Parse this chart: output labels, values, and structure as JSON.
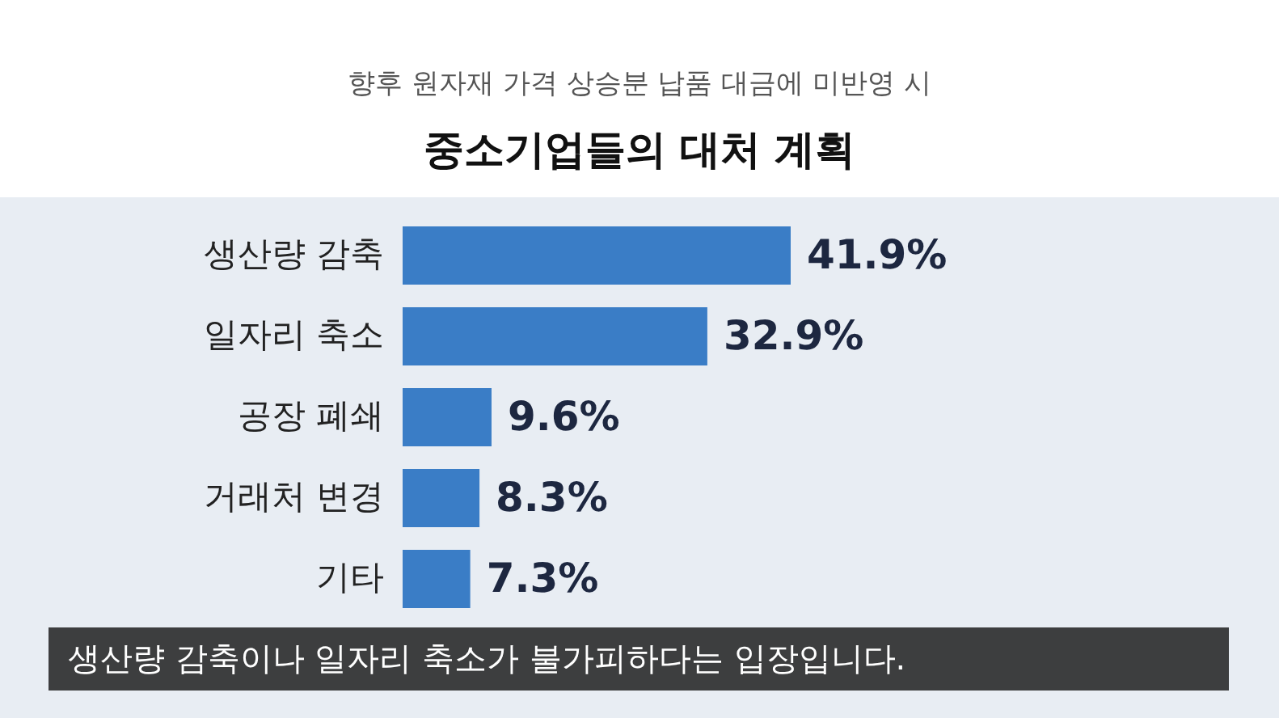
{
  "chart_data": {
    "type": "bar",
    "orientation": "horizontal",
    "subtitle": "향후 원자재 가격 상승분 납품 대금에 미반영 시",
    "title": "중소기업들의 대처 계획",
    "categories": [
      "생산량 감축",
      "일자리 축소",
      "공장 폐쇄",
      "거래처 변경",
      "기타"
    ],
    "values": [
      41.9,
      32.9,
      9.6,
      8.3,
      7.3
    ],
    "color": "#3a7dc6",
    "value_labels": [
      "41.9%",
      "32.9%",
      "9.6%",
      "8.3%",
      "7.3%"
    ],
    "annotations": [
      "생산량 감축이나 일자리 축소가 불가피하다는 입장입니다."
    ]
  }
}
